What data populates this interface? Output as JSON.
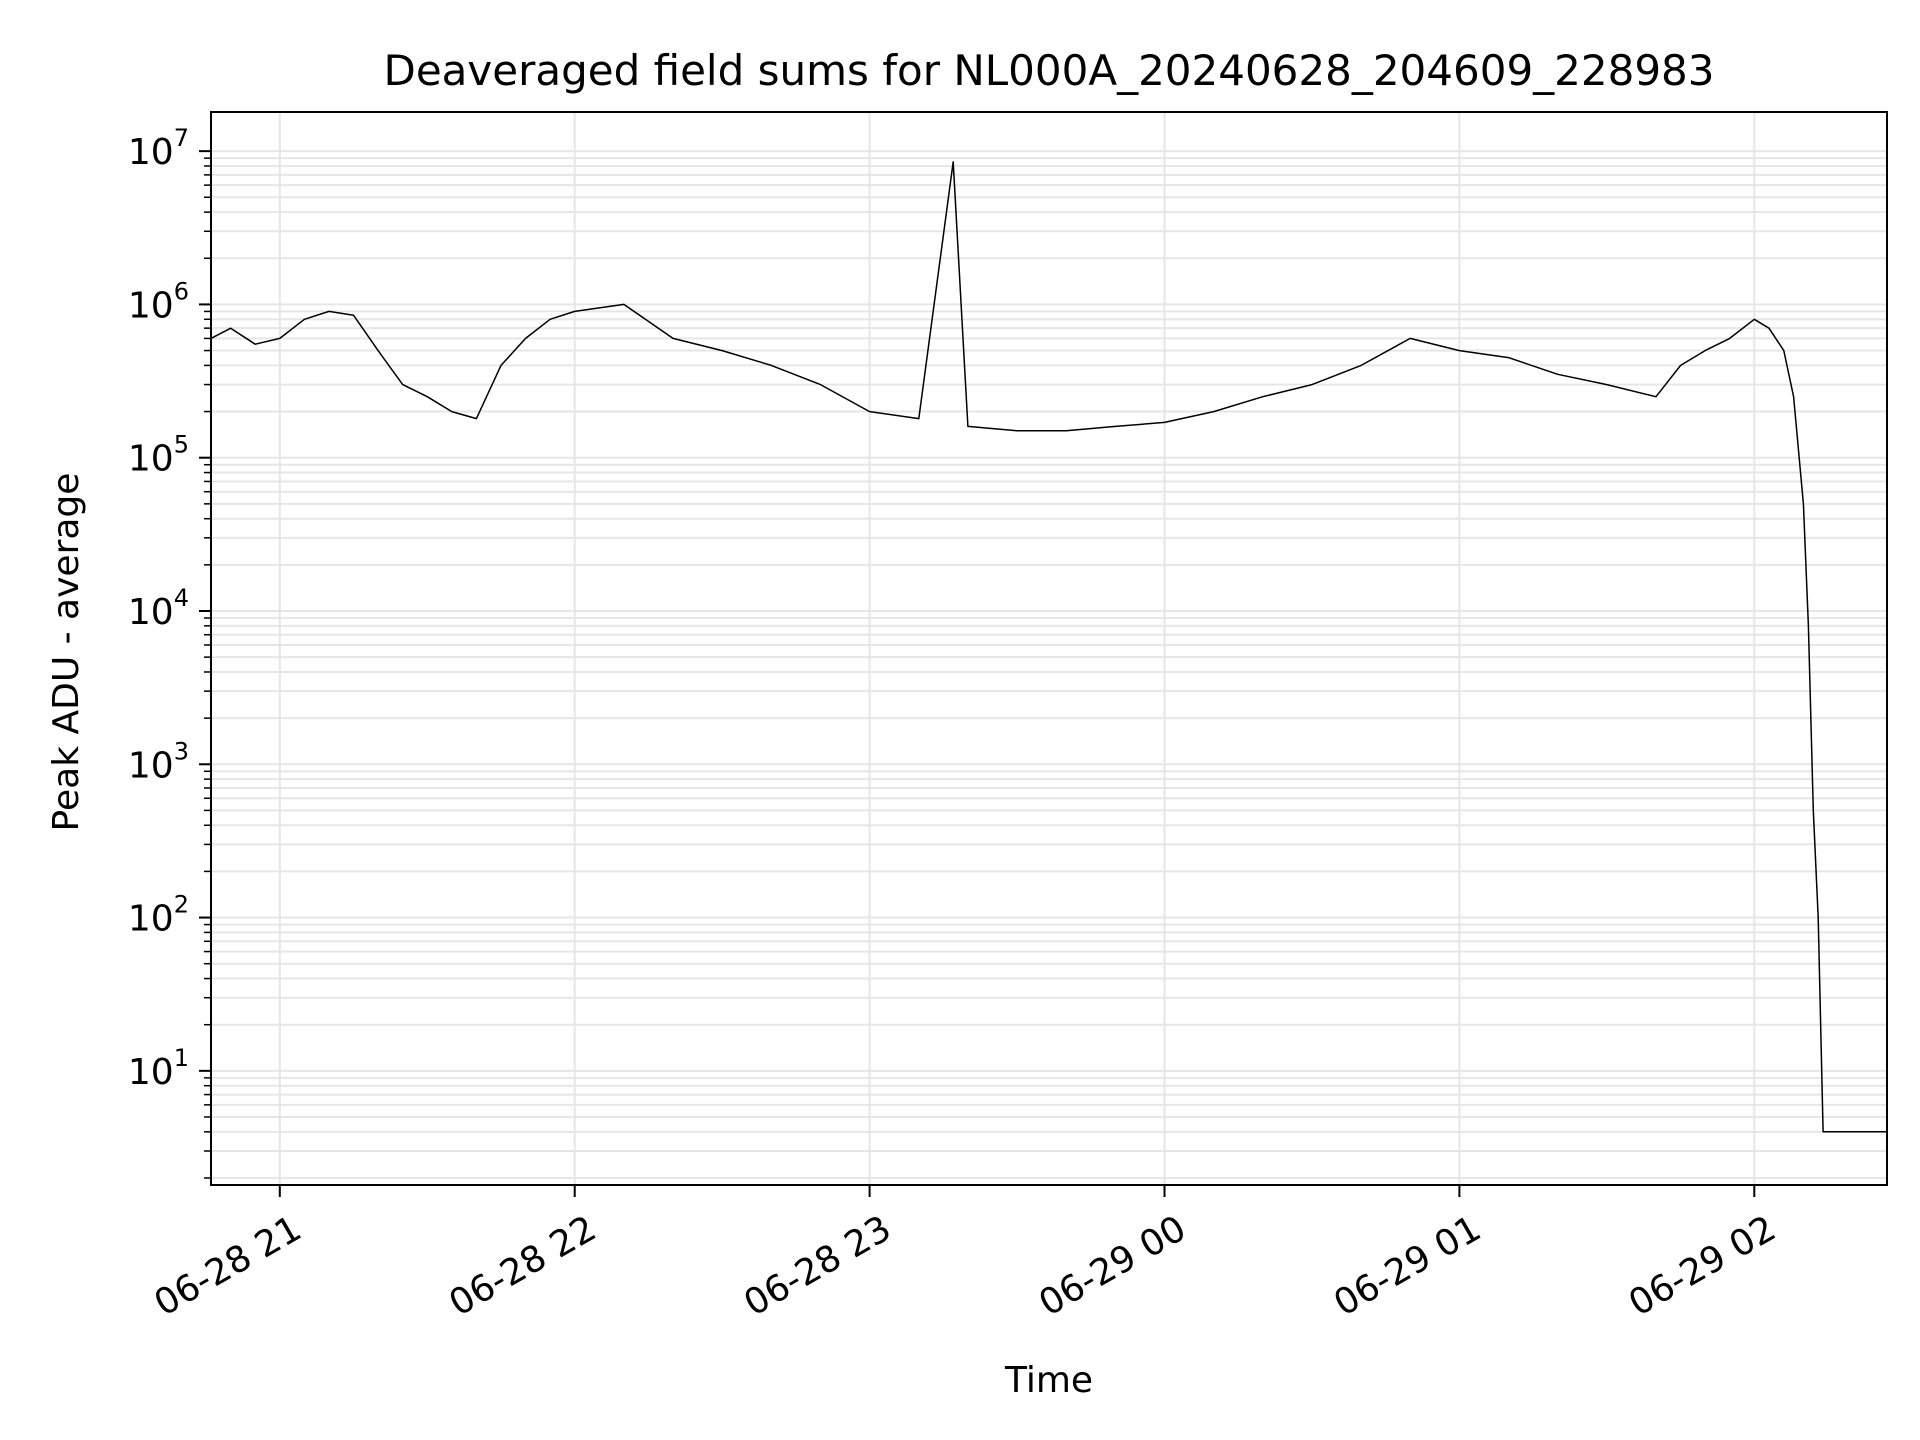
{
  "chart_data": {
    "type": "line",
    "title": "Deaveraged field sums for NL000A_20240628_204609_228983",
    "xlabel": "Time",
    "ylabel": "Peak ADU - average",
    "yscale": "log",
    "grid": true,
    "grid_minor": true,
    "line_color": "#000000",
    "grid_color": "#e6e6e6",
    "xlim": [
      "2024-06-28 20:46",
      "2024-06-29 02:27"
    ],
    "ylim": [
      1.8,
      18000000
    ],
    "x_ticks": [
      {
        "value": "2024-06-28 21:00",
        "label": "06-28 21"
      },
      {
        "value": "2024-06-28 22:00",
        "label": "06-28 22"
      },
      {
        "value": "2024-06-28 23:00",
        "label": "06-28 23"
      },
      {
        "value": "2024-06-29 00:00",
        "label": "06-29 00"
      },
      {
        "value": "2024-06-29 01:00",
        "label": "06-29 01"
      },
      {
        "value": "2024-06-29 02:00",
        "label": "06-29 02"
      }
    ],
    "y_ticks": [
      {
        "value": 10,
        "base": "10",
        "exp": "1"
      },
      {
        "value": 100,
        "base": "10",
        "exp": "2"
      },
      {
        "value": 1000,
        "base": "10",
        "exp": "3"
      },
      {
        "value": 10000,
        "base": "10",
        "exp": "4"
      },
      {
        "value": 100000,
        "base": "10",
        "exp": "5"
      },
      {
        "value": 1000000,
        "base": "10",
        "exp": "6"
      },
      {
        "value": 10000000,
        "base": "10",
        "exp": "7"
      }
    ],
    "series": [
      {
        "x": [
          "2024-06-28 20:46",
          "2024-06-28 20:50",
          "2024-06-28 20:55",
          "2024-06-28 21:00",
          "2024-06-28 21:05",
          "2024-06-28 21:10",
          "2024-06-28 21:15",
          "2024-06-28 21:20",
          "2024-06-28 21:25",
          "2024-06-28 21:30",
          "2024-06-28 21:35",
          "2024-06-28 21:40",
          "2024-06-28 21:45",
          "2024-06-28 21:50",
          "2024-06-28 21:55",
          "2024-06-28 22:00",
          "2024-06-28 22:10",
          "2024-06-28 22:20",
          "2024-06-28 22:30",
          "2024-06-28 22:40",
          "2024-06-28 22:50",
          "2024-06-28 23:00",
          "2024-06-28 23:10",
          "2024-06-28 23:17",
          "2024-06-28 23:20",
          "2024-06-28 23:30",
          "2024-06-28 23:40",
          "2024-06-28 23:50",
          "2024-06-29 00:00",
          "2024-06-29 00:10",
          "2024-06-29 00:20",
          "2024-06-29 00:30",
          "2024-06-29 00:40",
          "2024-06-29 00:50",
          "2024-06-29 01:00",
          "2024-06-29 01:10",
          "2024-06-29 01:20",
          "2024-06-29 01:30",
          "2024-06-29 01:40",
          "2024-06-29 01:45",
          "2024-06-29 01:50",
          "2024-06-29 01:55",
          "2024-06-29 02:00",
          "2024-06-29 02:03",
          "2024-06-29 02:06",
          "2024-06-29 02:08",
          "2024-06-29 02:10",
          "2024-06-29 02:11",
          "2024-06-29 02:12",
          "2024-06-29 02:13",
          "2024-06-29 02:14",
          "2024-06-29 02:15",
          "2024-06-29 02:20",
          "2024-06-29 02:27"
        ],
        "y": [
          600000,
          700000,
          550000,
          600000,
          800000,
          900000,
          850000,
          500000,
          300000,
          250000,
          200000,
          180000,
          400000,
          600000,
          800000,
          900000,
          1000000,
          600000,
          500000,
          400000,
          300000,
          200000,
          180000,
          8500000,
          160000,
          150000,
          150000,
          160000,
          170000,
          200000,
          250000,
          300000,
          400000,
          600000,
          500000,
          450000,
          350000,
          300000,
          250000,
          400000,
          500000,
          600000,
          800000,
          700000,
          500000,
          250000,
          50000,
          8000,
          500,
          100,
          4,
          4,
          4,
          4
        ]
      }
    ]
  }
}
